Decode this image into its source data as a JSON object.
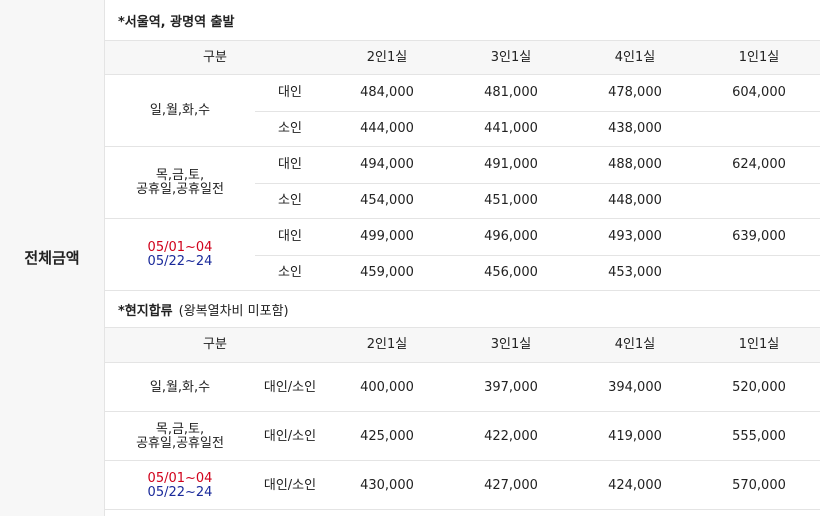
{
  "side_label": "전체금액",
  "sections": [
    {
      "title": "*서울역, 광명역 출발",
      "header": [
        "구분",
        "2인1실",
        "3인1실",
        "4인1실",
        "1인1실"
      ],
      "groups": [
        {
          "label": [
            {
              "text": "일,월,화,수"
            }
          ],
          "rows": [
            {
              "type": "대인",
              "prices": [
                "484,000",
                "481,000",
                "478,000",
                "604,000"
              ]
            },
            {
              "type": "소인",
              "prices": [
                "444,000",
                "441,000",
                "438,000"
              ]
            }
          ]
        },
        {
          "label": [
            {
              "text": "목,금,토,"
            },
            {
              "text": "공휴일,공휴일전"
            }
          ],
          "rows": [
            {
              "type": "대인",
              "prices": [
                "494,000",
                "491,000",
                "488,000",
                "624,000"
              ]
            },
            {
              "type": "소인",
              "prices": [
                "454,000",
                "451,000",
                "448,000"
              ]
            }
          ]
        },
        {
          "label": [
            {
              "text": "05/01~04",
              "color": "#d0021b"
            },
            {
              "text": "05/22~24",
              "color": "#1a2a9a"
            }
          ],
          "rows": [
            {
              "type": "대인",
              "prices": [
                "499,000",
                "496,000",
                "493,000",
                "639,000"
              ]
            },
            {
              "type": "소인",
              "prices": [
                "459,000",
                "456,000",
                "453,000"
              ]
            }
          ]
        }
      ]
    },
    {
      "title": "*현지합류",
      "note": "(왕복열차비 미포함)",
      "header": [
        "구분",
        "2인1실",
        "3인1실",
        "4인1실",
        "1인1실"
      ],
      "groups": [
        {
          "label": [
            {
              "text": "일,월,화,수"
            }
          ],
          "rows": [
            {
              "type": "대인/소인",
              "prices": [
                "400,000",
                "397,000",
                "394,000",
                "520,000"
              ]
            }
          ]
        },
        {
          "label": [
            {
              "text": "목,금,토,"
            },
            {
              "text": "공휴일,공휴일전"
            }
          ],
          "rows": [
            {
              "type": "대인/소인",
              "prices": [
                "425,000",
                "422,000",
                "419,000",
                "555,000"
              ]
            }
          ]
        },
        {
          "label": [
            {
              "text": "05/01~04",
              "color": "#d0021b"
            },
            {
              "text": "05/22~24",
              "color": "#1a2a9a"
            }
          ],
          "rows": [
            {
              "type": "대인/소인",
              "prices": [
                "430,000",
                "427,000",
                "424,000",
                "570,000"
              ]
            }
          ]
        }
      ]
    }
  ]
}
